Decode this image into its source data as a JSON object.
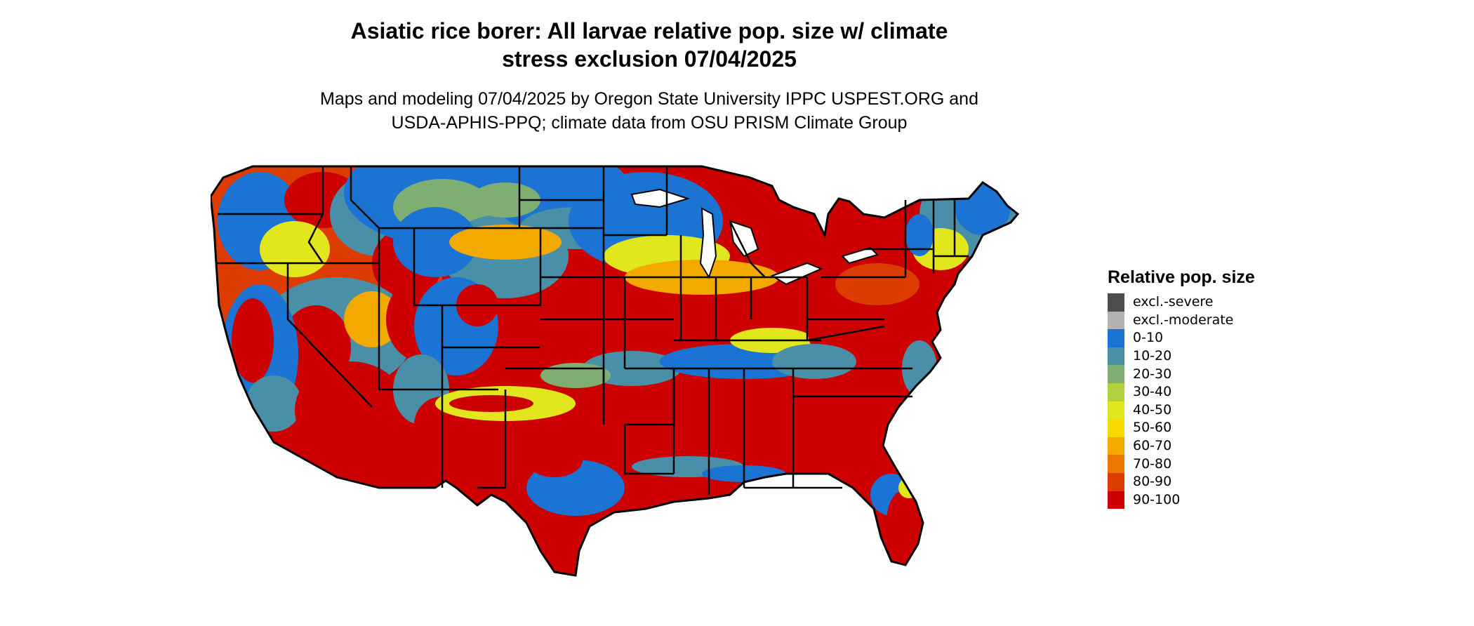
{
  "title": "Asiatic rice borer: All larvae relative pop. size w/ climate\nstress exclusion 07/04/2025",
  "subtitle": "Maps and modeling 07/04/2025 by Oregon State University IPPC USPEST.ORG and\nUSDA-APHIS-PPQ; climate data from OSU PRISM Climate Group",
  "legend": {
    "title": "Relative pop. size",
    "items": [
      {
        "label": "excl.-severe",
        "color": "#4d4d4d"
      },
      {
        "label": "excl.-moderate",
        "color": "#b3b3b3"
      },
      {
        "label": "0-10",
        "color": "#1b73d3"
      },
      {
        "label": "10-20",
        "color": "#4a8fa8"
      },
      {
        "label": "20-30",
        "color": "#7fae72"
      },
      {
        "label": "30-40",
        "color": "#b2cf3e"
      },
      {
        "label": "40-50",
        "color": "#e2e61c"
      },
      {
        "label": "50-60",
        "color": "#f7d800"
      },
      {
        "label": "60-70",
        "color": "#f3a900"
      },
      {
        "label": "70-80",
        "color": "#ec7600"
      },
      {
        "label": "80-90",
        "color": "#dd3c00"
      },
      {
        "label": "90-100",
        "color": "#cc0000"
      }
    ]
  },
  "map": {
    "region": "contiguous United States",
    "boundaries": "state",
    "regions": [
      {
        "name": "northern-rockies-plains",
        "class": "0-10"
      },
      {
        "name": "pacific-northwest",
        "class": "80-90"
      },
      {
        "name": "great-basin",
        "class": "10-20"
      },
      {
        "name": "california",
        "class": "90-100"
      },
      {
        "name": "southwest",
        "class": "90-100"
      },
      {
        "name": "central-plains",
        "class": "90-100"
      },
      {
        "name": "midwest",
        "class": "90-100"
      },
      {
        "name": "upper-midwest",
        "class": "0-10"
      },
      {
        "name": "great-lakes",
        "class": "40-50"
      },
      {
        "name": "southeast",
        "class": "90-100"
      },
      {
        "name": "appalachians",
        "class": "0-10"
      },
      {
        "name": "new-england",
        "class": "10-20"
      },
      {
        "name": "florida",
        "class": "90-100"
      },
      {
        "name": "gulf-coast",
        "class": "0-10"
      }
    ]
  }
}
